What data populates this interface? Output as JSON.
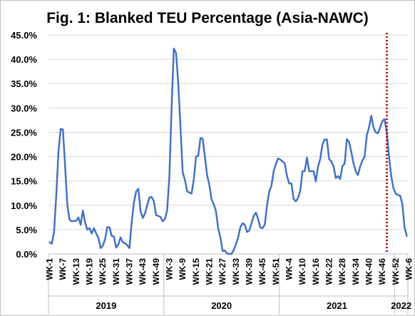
{
  "chart_data": {
    "type": "line",
    "title": "Fig. 1: Blanked TEU Percentage (Asia-NAWC)",
    "xlabel": "",
    "ylabel": "",
    "ylim": [
      0,
      45
    ],
    "yticks": [
      "0.0%",
      "5.0%",
      "10.0%",
      "15.0%",
      "20.0%",
      "25.0%",
      "30.0%",
      "35.0%",
      "40.0%",
      "45.0%"
    ],
    "grid": true,
    "legend": "none",
    "line_color": "#4472c4",
    "marker_color": "#c00000",
    "years": [
      "2019",
      "2020",
      "2021",
      "2022"
    ],
    "xtick_labels": [
      "WK-1",
      "WK-7",
      "WK-13",
      "WK-19",
      "WK-25",
      "WK-31",
      "WK-37",
      "WK-43",
      "WK-49",
      "WK-3",
      "WK-9",
      "WK-15",
      "WK-21",
      "WK-27",
      "WK-33",
      "WK-39",
      "WK-45",
      "WK-51",
      "WK-4",
      "WK-10",
      "WK-16",
      "WK-22",
      "WK-28",
      "WK-34",
      "WK-40",
      "WK-46",
      "WK-52",
      "WK-6"
    ],
    "marker_after_point": 152,
    "series": [
      {
        "values": [
          2.4,
          2.1,
          4.5,
          12.0,
          21.0,
          25.7,
          25.6,
          18.0,
          10.0,
          7.0,
          6.7,
          6.8,
          6.8,
          7.5,
          6.0,
          8.9,
          6.5,
          5.0,
          5.3,
          4.2,
          5.3,
          4.2,
          3.3,
          1.2,
          1.7,
          3.0,
          5.5,
          5.5,
          3.7,
          3.6,
          1.3,
          2.0,
          3.4,
          2.4,
          2.2,
          1.8,
          1.2,
          6.5,
          10.5,
          12.8,
          13.4,
          8.8,
          7.4,
          8.3,
          10.0,
          11.6,
          11.7,
          10.8,
          8.0,
          7.8,
          7.6,
          6.7,
          7.2,
          9.0,
          16.0,
          30.0,
          42.2,
          41.3,
          35.0,
          26.0,
          16.8,
          15.2,
          12.9,
          12.6,
          12.4,
          15.3,
          20.0,
          20.2,
          23.8,
          23.7,
          20.0,
          16.2,
          14.2,
          11.2,
          10.2,
          8.8,
          5.2,
          3.4,
          0.6,
          0.7,
          0.1,
          0.0,
          0.0,
          0.8,
          2.0,
          3.4,
          5.5,
          6.3,
          6.0,
          4.5,
          4.8,
          6.3,
          7.8,
          8.5,
          7.2,
          5.4,
          5.3,
          6.0,
          10.0,
          12.8,
          14.0,
          17.0,
          18.5,
          19.6,
          19.4,
          19.0,
          18.6,
          16.0,
          14.5,
          14.5,
          11.3,
          10.8,
          11.5,
          13.0,
          17.0,
          17.0,
          19.8,
          17.0,
          17.0,
          17.0,
          14.9,
          18.0,
          19.5,
          22.5,
          23.5,
          23.5,
          19.5,
          19.0,
          18.0,
          15.6,
          16.0,
          15.4,
          18.0,
          18.6,
          23.6,
          23.0,
          21.0,
          18.6,
          17.0,
          16.2,
          18.0,
          19.2,
          20.0,
          24.4,
          26.0,
          28.4,
          26.0,
          25.0,
          24.8,
          26.0,
          27.3,
          27.7,
          25.0,
          20.0,
          16.0,
          13.5,
          12.4,
          12.1,
          12.0,
          10.3,
          5.5,
          3.7
        ]
      }
    ]
  }
}
